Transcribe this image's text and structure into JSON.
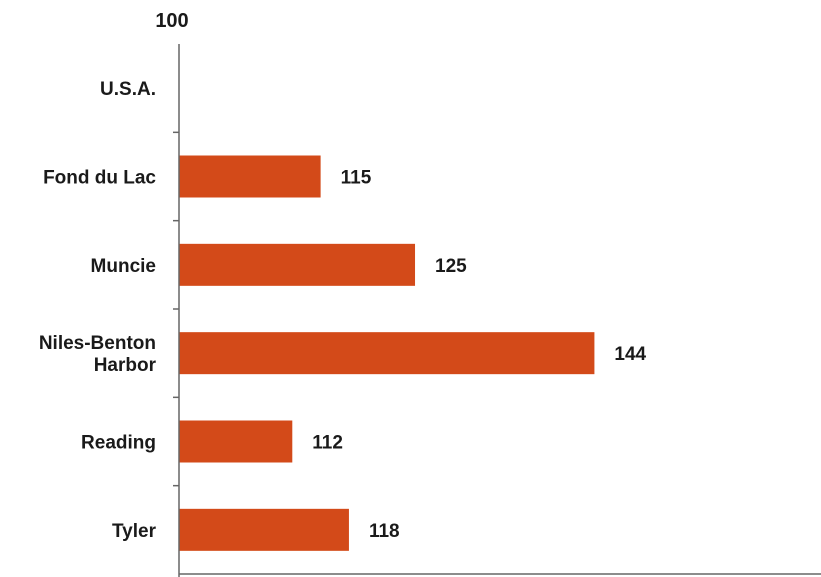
{
  "chart_data": {
    "type": "bar",
    "orientation": "horizontal",
    "reference_label": "100",
    "reference_value": 100,
    "categories": [
      "U.S.A.",
      "Fond du Lac",
      "Muncie",
      "Niles-Benton Harbor",
      "Reading",
      "Tyler"
    ],
    "category_lines": [
      [
        "U.S.A."
      ],
      [
        "Fond du Lac"
      ],
      [
        "Muncie"
      ],
      [
        "Niles-Benton",
        "Harbor"
      ],
      [
        "Reading"
      ],
      [
        "Tyler"
      ]
    ],
    "values": [
      100,
      115,
      125,
      144,
      112,
      118
    ],
    "value_labels": [
      "",
      "115",
      "125",
      "144",
      "112",
      "118"
    ],
    "xlim": [
      100,
      168
    ],
    "bar_color": "#d34a19",
    "axis_color": "#666666",
    "grid": false,
    "legend": "none"
  }
}
